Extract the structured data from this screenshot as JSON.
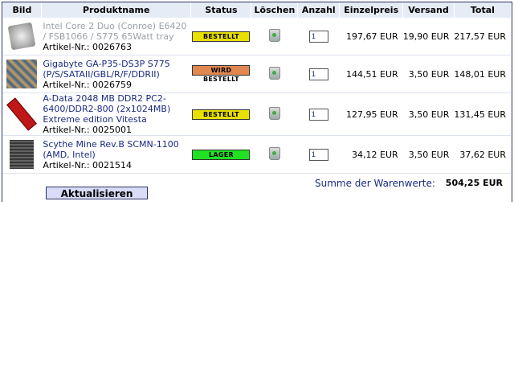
{
  "headers": [
    "Bild",
    "Produktname",
    "Status",
    "Löschen",
    "Anzahl",
    "Einzelpreis",
    "Versand",
    "Total"
  ],
  "status_colors": {
    "BESTELLT": "#e8e000",
    "WIRD BESTELLT": "#e08850",
    "LAGER": "#22e022"
  },
  "rows": [
    {
      "image": "cpu-image",
      "name": "Intel Core 2 Duo (Conroe) E6420 / FSB1066 / S775 65Watt tray",
      "name_grey": true,
      "article": "Artikel-Nr.: 0026763",
      "status": "BESTELLT",
      "delete_icon": "trash-icon",
      "qty": "1",
      "unit": "197,67 EUR",
      "shipping": "19,90 EUR",
      "total": "217,57 EUR"
    },
    {
      "image": "motherboard-image",
      "name": "Gigabyte GA-P35-DS3P S775 (P/S/SATAII/GBL/R/F/DDRII)",
      "name_grey": false,
      "article": "Artikel-Nr.: 0026759",
      "status": "WIRD BESTELLT",
      "delete_icon": "trash-icon",
      "qty": "1",
      "unit": "144,51 EUR",
      "shipping": "3,50 EUR",
      "total": "148,01 EUR"
    },
    {
      "image": "ram-image",
      "name": "A-Data 2048 MB DDR2 PC2-6400/DDR2-800 (2x1024MB) Extreme edition Vitesta",
      "name_grey": false,
      "article": "Artikel-Nr.: 0025001",
      "status": "BESTELLT",
      "delete_icon": "trash-icon",
      "qty": "1",
      "unit": "127,95 EUR",
      "shipping": "3,50 EUR",
      "total": "131,45 EUR"
    },
    {
      "image": "cooler-image",
      "name": "Scythe Mine Rev.B SCMN-1100 (AMD, Intel)",
      "name_grey": false,
      "article": "Artikel-Nr.: 0021514",
      "status": "LAGER",
      "delete_icon": "trash-icon",
      "qty": "1",
      "unit": "34,12 EUR",
      "shipping": "3,50 EUR",
      "total": "37,62 EUR"
    }
  ],
  "summary": {
    "label": "Summe der Warenwerte:",
    "value": "504,25 EUR"
  },
  "update_button": "Aktualisieren"
}
